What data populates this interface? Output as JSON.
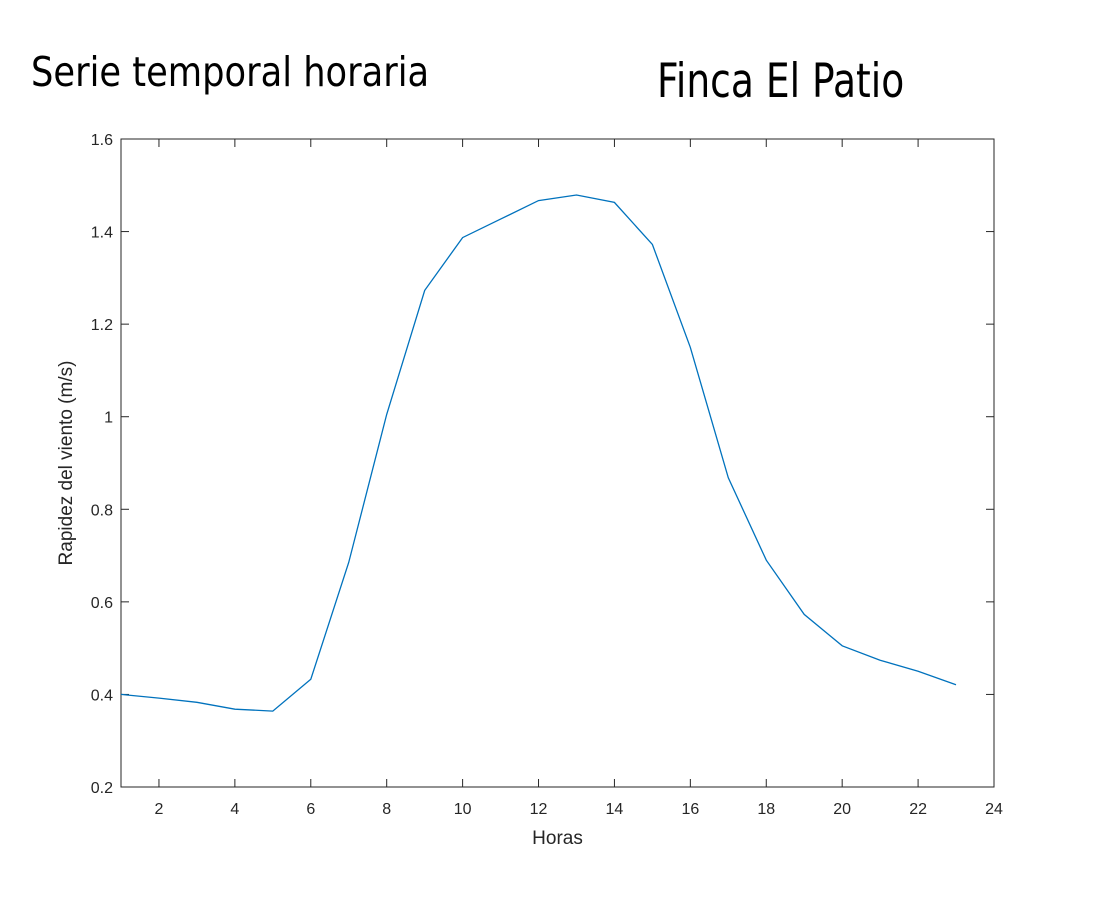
{
  "titles": {
    "left": "Serie temporal horaria",
    "right": "Finca El Patio"
  },
  "chart_data": {
    "type": "line",
    "xlabel": "Horas",
    "ylabel": "Rapidez del viento (m/s)",
    "xlim": [
      1,
      24
    ],
    "ylim": [
      0.2,
      1.6
    ],
    "x_ticks": [
      2,
      4,
      6,
      8,
      10,
      12,
      14,
      16,
      18,
      20,
      22,
      24
    ],
    "y_ticks": [
      0.2,
      0.4,
      0.6,
      0.8,
      1,
      1.2,
      1.4,
      1.6
    ],
    "x_tick_labels": [
      "2",
      "4",
      "6",
      "8",
      "10",
      "12",
      "14",
      "16",
      "18",
      "20",
      "22",
      "24"
    ],
    "y_tick_labels": [
      "0.2",
      "0.4",
      "0.6",
      "0.8",
      "1",
      "1.2",
      "1.4",
      "1.6"
    ],
    "grid": false,
    "box": true,
    "series": [
      {
        "color": "#0072bd",
        "x": [
          1,
          2,
          3,
          4,
          5,
          6,
          7,
          8,
          9,
          10,
          11,
          12,
          13,
          14,
          15,
          16,
          17,
          18,
          19,
          20,
          21,
          22,
          23
        ],
        "y": [
          0.4,
          0.392,
          0.383,
          0.368,
          0.364,
          0.433,
          0.685,
          1.005,
          1.273,
          1.387,
          1.427,
          1.467,
          1.479,
          1.463,
          1.372,
          1.15,
          0.868,
          0.69,
          0.573,
          0.505,
          0.474,
          0.45,
          0.421
        ]
      }
    ]
  }
}
